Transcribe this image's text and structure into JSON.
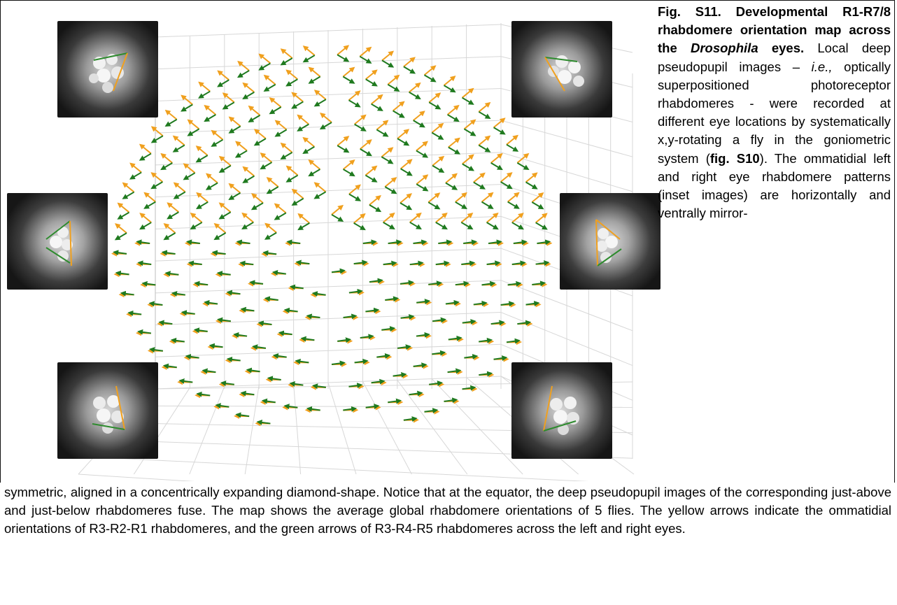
{
  "caption": {
    "fig_label": "Fig. S11.",
    "title_pre": " Developmental R1-R7/8 rhabdomere orientation map across the ",
    "title_italic": "Drosophila",
    "title_post": " eyes.",
    "body_1": " Local deep pseudopupil images – ",
    "body_ie": "i.e.,",
    "body_2": " optically superpositioned photoreceptor rhabdomeres - were recorded at different eye locations by systematically x,y-rotating a fly in the goniometric system (",
    "fig_ref": "fig. S10",
    "body_3": "). The ommatidial left and right eye rhabdomere patterns (inset images) are horizontally and ventrally mirror-",
    "body_bottom": "symmetric, aligned in a concentrically expanding diamond-shape. Notice that at the equator, the deep pseudopupil images of the corresponding just-above and just-below rhabdomeres fuse. The map shows the average global rhabdomere orientations of 5 flies. The yellow arrows indicate the ommatidial orientations of R3-R2-R1 rhabdomeres, and the green arrows of R3-R4-R5 rhabdomeres across the left and right eyes."
  },
  "colors": {
    "yellow_arrow": "#f0a01e",
    "green_arrow": "#1f7a1f",
    "grid": "#d7d7d7"
  }
}
